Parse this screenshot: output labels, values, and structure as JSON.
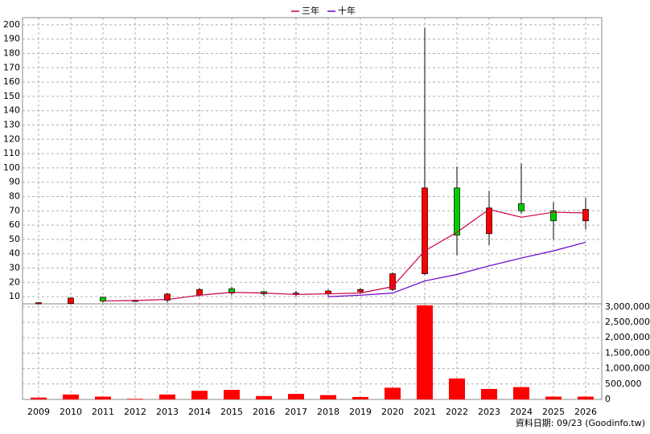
{
  "chart_data": [
    {
      "type": "candlestick",
      "categories": [
        "2009",
        "2010",
        "2011",
        "2012",
        "2013",
        "2014",
        "2015",
        "2016",
        "2017",
        "2018",
        "2019",
        "2020",
        "2021",
        "2022",
        "2023",
        "2024",
        "2025",
        "2026"
      ],
      "open": [
        5.5,
        5.2,
        9.5,
        7,
        7.5,
        11,
        15.5,
        13.5,
        12,
        12,
        13.5,
        15,
        26,
        86,
        54,
        75,
        70,
        63
      ],
      "high": [
        6,
        9.5,
        10,
        7.8,
        12.5,
        16,
        17,
        14,
        14,
        15,
        16,
        27,
        198,
        101,
        84,
        103,
        76,
        79
      ],
      "low": [
        5.3,
        5,
        6,
        6.8,
        6,
        10,
        11,
        10.5,
        10,
        10.5,
        12,
        14,
        25,
        39,
        46,
        68,
        50,
        57
      ],
      "close": [
        5.8,
        9,
        6.8,
        7.5,
        11.8,
        15,
        12.5,
        12,
        12.5,
        14,
        15,
        26,
        86,
        53,
        72,
        70,
        63,
        71
      ],
      "up_color": "#ff0000",
      "down_color": "#00cc00",
      "series": [
        {
          "name": "三年",
          "color": "#cc0044",
          "values": [
            null,
            null,
            7,
            7.3,
            8,
            11,
            13,
            12.5,
            11.5,
            12,
            12.5,
            17,
            42,
            55,
            71,
            65.5,
            69,
            68.5
          ]
        },
        {
          "name": "十年",
          "color": "#6600cc",
          "values": [
            null,
            null,
            null,
            null,
            null,
            null,
            null,
            null,
            null,
            10,
            11,
            12.5,
            21,
            25.5,
            31.5,
            37,
            42,
            48
          ]
        }
      ],
      "ylim": [
        5,
        205
      ],
      "yticks": [
        10,
        20,
        30,
        40,
        50,
        60,
        70,
        80,
        90,
        100,
        110,
        120,
        130,
        140,
        150,
        160,
        170,
        180,
        190,
        200
      ],
      "grid": true,
      "footer": "資料日期: 09/23 (Goodinfo.tw)"
    },
    {
      "type": "bar",
      "values": [
        60000,
        160000,
        90000,
        20000,
        160000,
        280000,
        310000,
        110000,
        180000,
        140000,
        80000,
        380000,
        3050000,
        680000,
        340000,
        400000,
        90000,
        90000
      ],
      "color": "#ff0000",
      "ylim": [
        0,
        3100000
      ],
      "yticks": [
        0,
        {
          "value": 500000,
          "label": "500,000"
        },
        {
          "value": 1000000,
          "label": "1,000,000"
        },
        {
          "value": 1500000,
          "label": "1,500,000"
        },
        {
          "value": 2000000,
          "label": "2,000,000"
        },
        {
          "value": 2500000,
          "label": "2,500,000"
        },
        {
          "value": 3000000,
          "label": "3,000,000"
        }
      ],
      "grid": true
    }
  ]
}
